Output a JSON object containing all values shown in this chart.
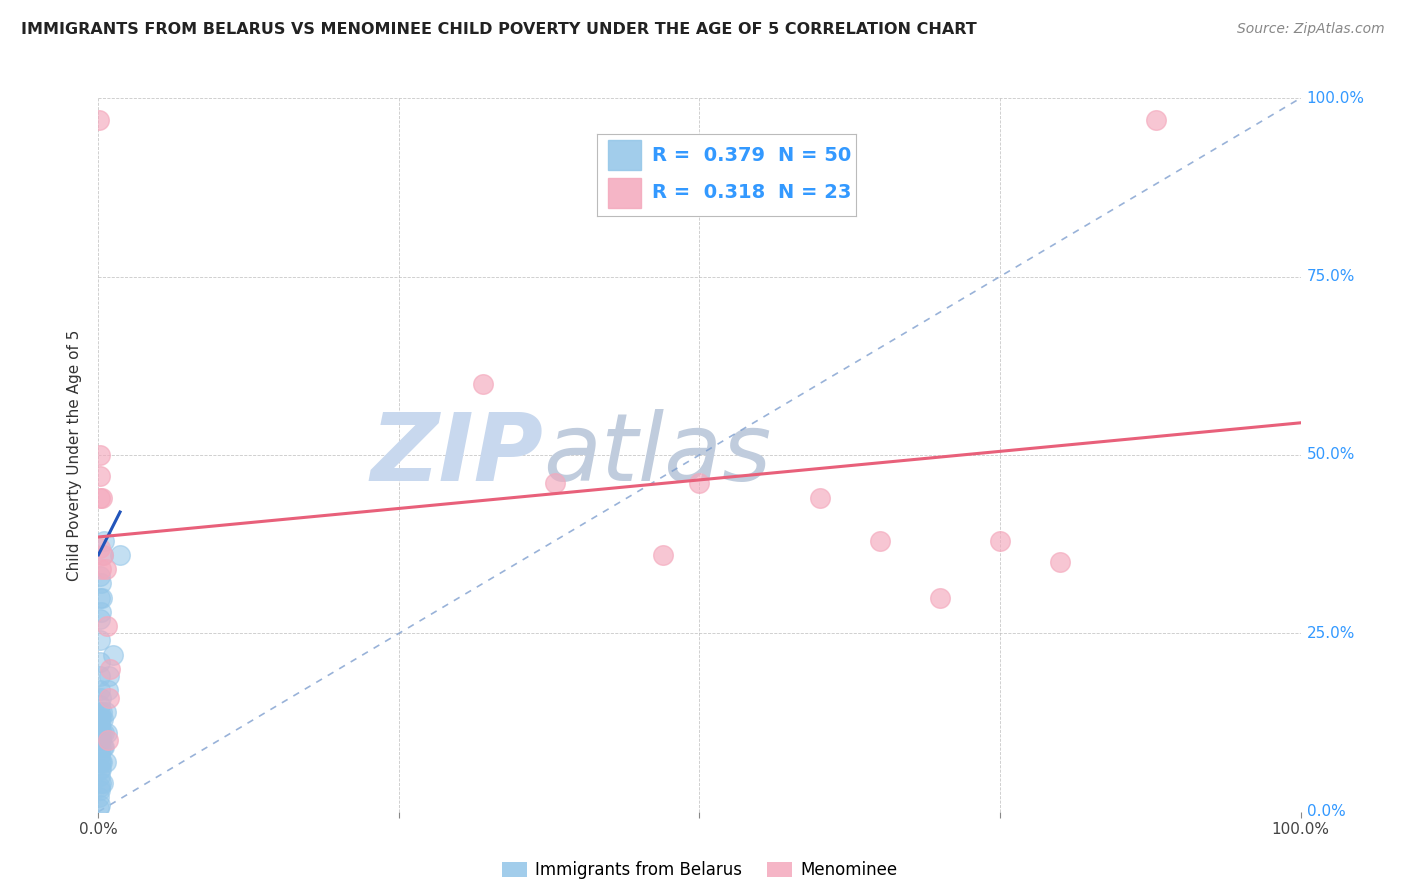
{
  "title": "IMMIGRANTS FROM BELARUS VS MENOMINEE CHILD POVERTY UNDER THE AGE OF 5 CORRELATION CHART",
  "source": "Source: ZipAtlas.com",
  "ylabel": "Child Poverty Under the Age of 5",
  "xlim": [
    0,
    1.0
  ],
  "ylim": [
    0,
    1.0
  ],
  "legend_r1": "0.379",
  "legend_n1": "50",
  "legend_r2": "0.318",
  "legend_n2": "23",
  "color_blue": "#92C5E8",
  "color_pink": "#F4A8BC",
  "color_trendline_blue": "#2255BB",
  "color_trendline_pink": "#E8607A",
  "color_dashed": "#7799CC",
  "label_color": "#3399FF",
  "title_color": "#222222",
  "source_color": "#888888",
  "watermark_zip": "#C8D8EE",
  "watermark_atlas": "#C0CCDD",
  "blue_scatter": [
    [
      0.0008,
      0.005
    ],
    [
      0.0008,
      0.02
    ],
    [
      0.0009,
      0.035
    ],
    [
      0.001,
      0.05
    ],
    [
      0.001,
      0.07
    ],
    [
      0.001,
      0.09
    ],
    [
      0.001,
      0.11
    ],
    [
      0.001,
      0.13
    ],
    [
      0.001,
      0.15
    ],
    [
      0.001,
      0.17
    ],
    [
      0.001,
      0.19
    ],
    [
      0.001,
      0.21
    ],
    [
      0.001,
      0.24
    ],
    [
      0.001,
      0.27
    ],
    [
      0.001,
      0.3
    ],
    [
      0.001,
      0.33
    ],
    [
      0.0015,
      0.01
    ],
    [
      0.0015,
      0.03
    ],
    [
      0.0015,
      0.06
    ],
    [
      0.0015,
      0.08
    ],
    [
      0.0015,
      0.1
    ],
    [
      0.0015,
      0.12
    ],
    [
      0.0015,
      0.14
    ],
    [
      0.002,
      0.04
    ],
    [
      0.002,
      0.07
    ],
    [
      0.002,
      0.1
    ],
    [
      0.002,
      0.13
    ],
    [
      0.002,
      0.16
    ],
    [
      0.002,
      0.28
    ],
    [
      0.002,
      0.32
    ],
    [
      0.0025,
      0.06
    ],
    [
      0.0025,
      0.09
    ],
    [
      0.003,
      0.07
    ],
    [
      0.003,
      0.11
    ],
    [
      0.003,
      0.14
    ],
    [
      0.003,
      0.3
    ],
    [
      0.004,
      0.04
    ],
    [
      0.004,
      0.09
    ],
    [
      0.004,
      0.13
    ],
    [
      0.004,
      0.36
    ],
    [
      0.005,
      0.09
    ],
    [
      0.005,
      0.11
    ],
    [
      0.005,
      0.38
    ],
    [
      0.006,
      0.07
    ],
    [
      0.006,
      0.14
    ],
    [
      0.007,
      0.11
    ],
    [
      0.008,
      0.17
    ],
    [
      0.009,
      0.19
    ],
    [
      0.012,
      0.22
    ],
    [
      0.018,
      0.36
    ]
  ],
  "pink_scatter": [
    [
      0.0005,
      0.97
    ],
    [
      0.001,
      0.47
    ],
    [
      0.001,
      0.44
    ],
    [
      0.001,
      0.37
    ],
    [
      0.0015,
      0.5
    ],
    [
      0.002,
      0.34
    ],
    [
      0.003,
      0.44
    ],
    [
      0.004,
      0.36
    ],
    [
      0.006,
      0.34
    ],
    [
      0.007,
      0.26
    ],
    [
      0.008,
      0.1
    ],
    [
      0.009,
      0.16
    ],
    [
      0.01,
      0.2
    ],
    [
      0.32,
      0.6
    ],
    [
      0.38,
      0.46
    ],
    [
      0.47,
      0.36
    ],
    [
      0.5,
      0.46
    ],
    [
      0.6,
      0.44
    ],
    [
      0.65,
      0.38
    ],
    [
      0.7,
      0.3
    ],
    [
      0.75,
      0.38
    ],
    [
      0.8,
      0.35
    ],
    [
      0.88,
      0.97
    ]
  ],
  "blue_trend_x": [
    0.0,
    0.018
  ],
  "blue_trend_y": [
    0.36,
    0.42
  ],
  "pink_trend_x": [
    0.0,
    1.0
  ],
  "pink_trend_y": [
    0.385,
    0.545
  ],
  "dashed_line_x": [
    0.0,
    1.0
  ],
  "dashed_line_y": [
    0.0,
    1.0
  ]
}
